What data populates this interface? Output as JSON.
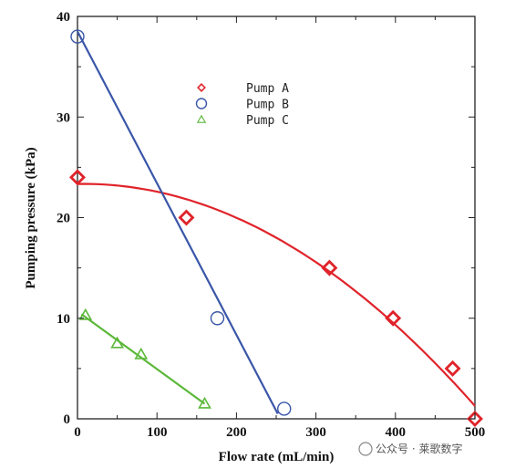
{
  "chart_data": {
    "type": "scatter",
    "xlabel": "Flow rate (mL/min)",
    "ylabel": "Pumping pressure (kPa)",
    "xlim": [
      0,
      500
    ],
    "ylim": [
      0,
      40
    ],
    "xticks": [
      0,
      100,
      200,
      300,
      400,
      500
    ],
    "yticks": [
      0,
      10,
      20,
      30,
      40
    ],
    "grid": false,
    "legend_position": "top-center",
    "series": [
      {
        "name": "Pump A",
        "marker": "diamond",
        "color": "#e0232a",
        "x": [
          0,
          137,
          317,
          397,
          472,
          500
        ],
        "y": [
          24,
          20,
          15,
          10,
          5,
          0
        ],
        "fit": {
          "type": "quadratic",
          "x": [
            0,
            100,
            200,
            300,
            400,
            500
          ],
          "y": [
            23.4,
            22.5,
            20.0,
            15.5,
            9.5,
            1.2
          ]
        }
      },
      {
        "name": "Pump B",
        "marker": "circle-open",
        "color": "#3a56a8",
        "x": [
          0,
          176,
          260
        ],
        "y": [
          38,
          10,
          1
        ],
        "fit": {
          "type": "linear",
          "x": [
            0,
            252
          ],
          "y": [
            38.5,
            0.5
          ]
        }
      },
      {
        "name": "Pump C",
        "marker": "triangle-open",
        "color": "#5cb83a",
        "x": [
          10,
          50,
          80,
          160
        ],
        "y": [
          10.3,
          7.5,
          6.4,
          1.5
        ],
        "fit": {
          "type": "linear",
          "x": [
            5,
            160
          ],
          "y": [
            10.4,
            1.5
          ]
        }
      }
    ]
  },
  "watermark": "公众号 · 莱歌数字"
}
